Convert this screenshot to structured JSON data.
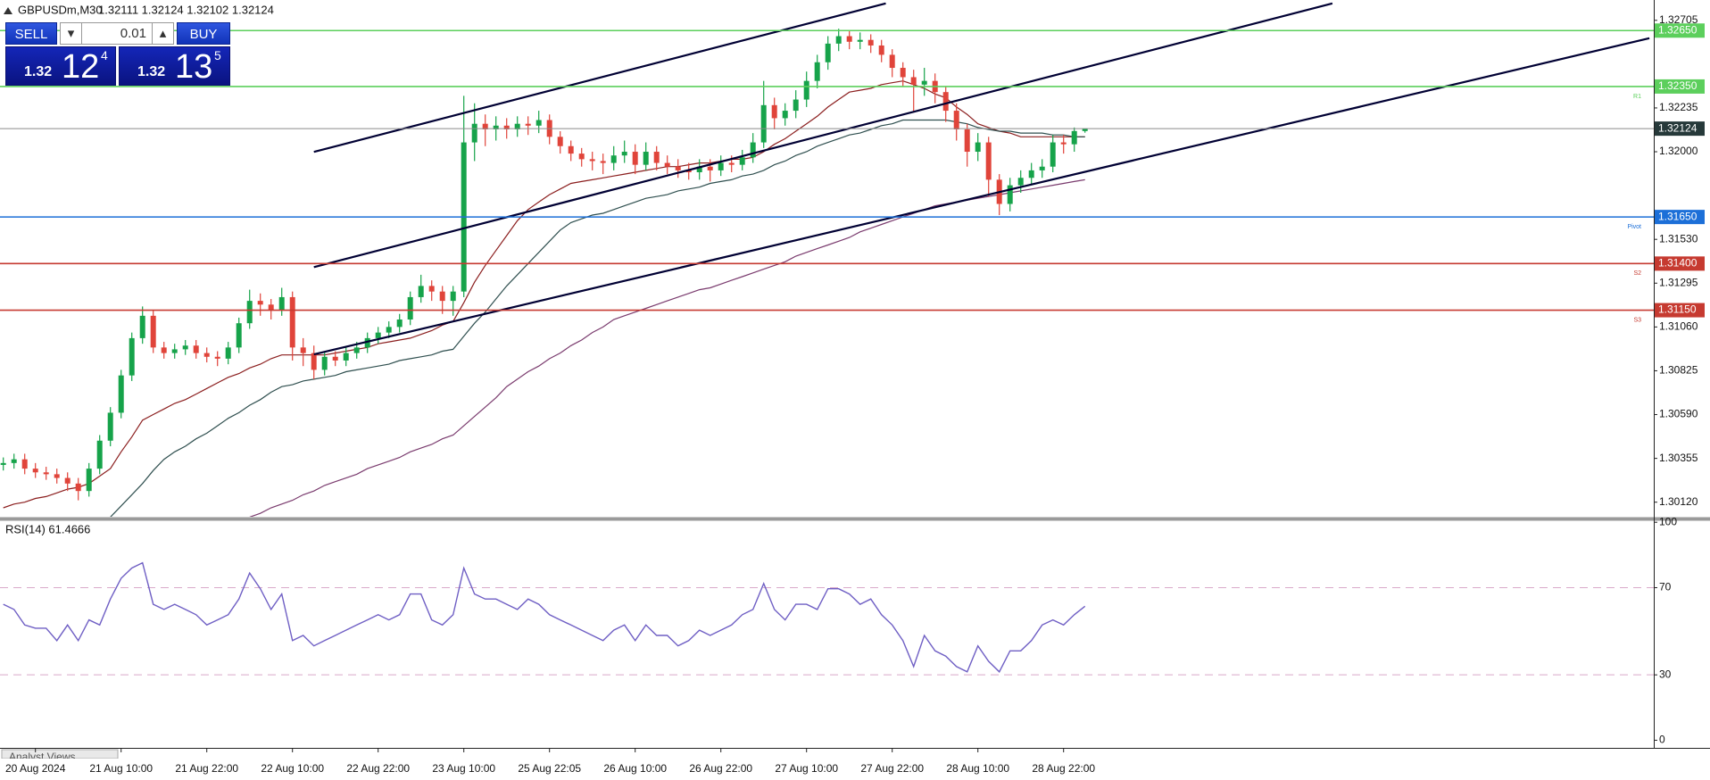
{
  "header": {
    "symbol": "GBPUSDm,M30",
    "quote": "1.32111 1.32124 1.32102 1.32124"
  },
  "trade_panel": {
    "sell": "SELL",
    "buy": "BUY",
    "volume": "0.01",
    "bid": {
      "big": "1.32",
      "pips": "12",
      "point": "4"
    },
    "ask": {
      "big": "1.32",
      "pips": "13",
      "point": "5"
    }
  },
  "footer_tab": "Analyst Views",
  "chart_data": [
    {
      "type": "candlestick",
      "categories": [
        null,
        null,
        null,
        "20 Aug 2024",
        null,
        null,
        null,
        null,
        null,
        null,
        null,
        "21 Aug 10:00",
        null,
        null,
        null,
        null,
        null,
        null,
        null,
        "21 Aug 22:00",
        null,
        null,
        null,
        null,
        null,
        null,
        null,
        "22 Aug 10:00",
        null,
        null,
        null,
        null,
        null,
        null,
        null,
        "22 Aug 22:00",
        null,
        null,
        null,
        null,
        null,
        null,
        null,
        "23 Aug 10:00",
        null,
        null,
        null,
        null,
        null,
        null,
        null,
        "25 Aug 22:05",
        null,
        null,
        null,
        null,
        null,
        null,
        null,
        "26 Aug 10:00",
        null,
        null,
        null,
        null,
        null,
        null,
        null,
        "26 Aug 22:00",
        null,
        null,
        null,
        null,
        null,
        null,
        null,
        "27 Aug 10:00",
        null,
        null,
        null,
        null,
        null,
        null,
        null,
        "27 Aug 22:00",
        null,
        null,
        null,
        null,
        null,
        null,
        null,
        "28 Aug 10:00",
        null,
        null,
        null,
        null,
        null,
        null,
        null,
        "28 Aug 22:00",
        null,
        null
      ],
      "open": [
        1.3032,
        1.3033,
        1.3035,
        1.303,
        1.3028,
        1.3027,
        1.3025,
        1.3022,
        1.3018,
        1.303,
        1.3045,
        1.306,
        1.308,
        1.31,
        1.3112,
        1.3095,
        1.3092,
        1.3094,
        1.3096,
        1.3092,
        1.309,
        1.3089,
        1.3095,
        1.3108,
        1.312,
        1.3118,
        1.3115,
        1.3122,
        1.3095,
        1.3092,
        1.3083,
        1.309,
        1.3088,
        1.3092,
        1.3095,
        1.31,
        1.3103,
        1.3106,
        1.311,
        1.3122,
        1.3128,
        1.3125,
        1.312,
        1.3125,
        1.3205,
        1.3215,
        1.3212,
        1.3214,
        1.3212,
        1.3215,
        1.3214,
        1.3217,
        1.3208,
        1.3203,
        1.3199,
        1.3196,
        1.3195,
        1.3194,
        1.3198,
        1.32,
        1.3193,
        1.32,
        1.3194,
        1.3192,
        1.319,
        1.3189,
        1.3192,
        1.319,
        1.3194,
        1.3193,
        1.3197,
        1.3205,
        1.3225,
        1.3218,
        1.3222,
        1.3228,
        1.3238,
        1.3248,
        1.3258,
        1.3262,
        1.3259,
        1.326,
        1.3257,
        1.3252,
        1.3245,
        1.324,
        1.3236,
        1.3238,
        1.3232,
        1.3222,
        1.3212,
        1.32,
        1.3205,
        1.3185,
        1.3172,
        1.3182,
        1.3186,
        1.319,
        1.3192,
        1.3205,
        1.3204,
        1.32111
      ],
      "high": [
        1.3036,
        1.3038,
        1.3038,
        1.3033,
        1.3031,
        1.303,
        1.3028,
        1.3025,
        1.3033,
        1.3048,
        1.3063,
        1.3083,
        1.3103,
        1.3117,
        1.3115,
        1.3098,
        1.3097,
        1.3099,
        1.3099,
        1.3095,
        1.3093,
        1.3098,
        1.3111,
        1.3126,
        1.3124,
        1.3121,
        1.3127,
        1.3125,
        1.31,
        1.3096,
        1.3093,
        1.3093,
        1.3095,
        1.3098,
        1.3103,
        1.3106,
        1.3109,
        1.3113,
        1.3125,
        1.3134,
        1.3131,
        1.3128,
        1.3128,
        1.323,
        1.3226,
        1.322,
        1.3219,
        1.3218,
        1.3219,
        1.3219,
        1.3222,
        1.322,
        1.3211,
        1.3206,
        1.3202,
        1.32,
        1.3199,
        1.3203,
        1.3206,
        1.3204,
        1.3205,
        1.3203,
        1.3198,
        1.3196,
        1.3194,
        1.3196,
        1.3196,
        1.3198,
        1.3198,
        1.3201,
        1.321,
        1.3238,
        1.3229,
        1.3226,
        1.3233,
        1.3243,
        1.3252,
        1.3262,
        1.3266,
        1.3265,
        1.3264,
        1.3263,
        1.326,
        1.3255,
        1.3248,
        1.3244,
        1.3245,
        1.3242,
        1.3235,
        1.3226,
        1.3215,
        1.321,
        1.3208,
        1.3188,
        1.3186,
        1.319,
        1.3194,
        1.3196,
        1.3209,
        1.3209,
        1.3213,
        1.32124
      ],
      "low": [
        1.3029,
        1.303,
        1.3027,
        1.3025,
        1.3024,
        1.3022,
        1.3018,
        1.3013,
        1.3015,
        1.3027,
        1.3042,
        1.3057,
        1.3077,
        1.3097,
        1.3092,
        1.3089,
        1.3089,
        1.3091,
        1.3089,
        1.3087,
        1.3085,
        1.3086,
        1.3092,
        1.3105,
        1.3112,
        1.311,
        1.3112,
        1.3088,
        1.3085,
        1.3078,
        1.308,
        1.3085,
        1.3085,
        1.3089,
        1.3092,
        1.3097,
        1.31,
        1.3103,
        1.3107,
        1.3119,
        1.312,
        1.3113,
        1.3112,
        1.3122,
        1.3195,
        1.3203,
        1.3206,
        1.3207,
        1.3208,
        1.3209,
        1.321,
        1.3204,
        1.3199,
        1.3195,
        1.3192,
        1.319,
        1.3188,
        1.319,
        1.3194,
        1.3188,
        1.319,
        1.319,
        1.3188,
        1.3186,
        1.3185,
        1.3185,
        1.3184,
        1.3187,
        1.3189,
        1.319,
        1.3194,
        1.3202,
        1.3212,
        1.3214,
        1.3218,
        1.3224,
        1.3234,
        1.3244,
        1.3254,
        1.3255,
        1.3255,
        1.3253,
        1.3248,
        1.324,
        1.3235,
        1.3221,
        1.323,
        1.3226,
        1.3216,
        1.3206,
        1.3192,
        1.3195,
        1.3176,
        1.3166,
        1.3168,
        1.3178,
        1.3182,
        1.3186,
        1.3189,
        1.3199,
        1.32,
        1.32102
      ],
      "close": [
        1.3033,
        1.3035,
        1.303,
        1.3028,
        1.3027,
        1.3025,
        1.3022,
        1.3018,
        1.303,
        1.3045,
        1.306,
        1.308,
        1.31,
        1.3112,
        1.3095,
        1.3092,
        1.3094,
        1.3096,
        1.3092,
        1.309,
        1.3089,
        1.3095,
        1.3108,
        1.312,
        1.3118,
        1.3115,
        1.3122,
        1.3095,
        1.3092,
        1.3083,
        1.309,
        1.3088,
        1.3092,
        1.3095,
        1.31,
        1.3103,
        1.3106,
        1.311,
        1.3122,
        1.3128,
        1.3125,
        1.312,
        1.3125,
        1.3205,
        1.3215,
        1.3212,
        1.3214,
        1.3212,
        1.3215,
        1.3214,
        1.3217,
        1.3208,
        1.3203,
        1.3199,
        1.3196,
        1.3195,
        1.3194,
        1.3198,
        1.32,
        1.3193,
        1.32,
        1.3194,
        1.3192,
        1.319,
        1.3189,
        1.3192,
        1.319,
        1.3194,
        1.3193,
        1.3197,
        1.3205,
        1.3225,
        1.3218,
        1.3222,
        1.3228,
        1.3238,
        1.3248,
        1.3258,
        1.3262,
        1.3259,
        1.326,
        1.3257,
        1.3252,
        1.3245,
        1.324,
        1.3236,
        1.3238,
        1.3232,
        1.3222,
        1.3212,
        1.32,
        1.3205,
        1.3185,
        1.3172,
        1.3182,
        1.3186,
        1.319,
        1.3192,
        1.3205,
        1.3204,
        1.32111,
        1.32124
      ],
      "up_color": "#16a34a",
      "down_color": "#e0443a",
      "series": [
        {
          "color": "#8b1e1e",
          "values": [
            1.3009,
            1.3011,
            1.3012,
            1.3014,
            1.3015,
            1.3017,
            1.3019,
            1.302,
            1.3022,
            1.3026,
            1.303,
            1.3039,
            1.3047,
            1.3056,
            1.3059,
            1.3062,
            1.3065,
            1.3067,
            1.307,
            1.3073,
            1.3076,
            1.3079,
            1.3081,
            1.3084,
            1.3086,
            1.3089,
            1.3091,
            1.3091,
            1.3091,
            1.3091,
            1.3091,
            1.3092,
            1.3093,
            1.3094,
            1.3095,
            1.3097,
            1.3098,
            1.3099,
            1.31,
            1.3102,
            1.3104,
            1.3107,
            1.3109,
            1.3119,
            1.313,
            1.3139,
            1.3147,
            1.3155,
            1.3163,
            1.3169,
            1.3173,
            1.3177,
            1.318,
            1.3183,
            1.3184,
            1.3185,
            1.3186,
            1.3187,
            1.3188,
            1.3189,
            1.319,
            1.3191,
            1.3192,
            1.3192,
            1.3193,
            1.3194,
            1.3194,
            1.3195,
            1.3196,
            1.3196,
            1.3197,
            1.32,
            1.3204,
            1.3207,
            1.3211,
            1.3215,
            1.3219,
            1.3224,
            1.3228,
            1.3232,
            1.3233,
            1.3234,
            1.3236,
            1.3237,
            1.3238,
            1.3236,
            1.3234,
            1.3231,
            1.3229,
            1.3224,
            1.322,
            1.3215,
            1.3213,
            1.3211,
            1.321,
            1.3208,
            1.3208,
            1.3208,
            1.3208,
            1.3208,
            1.3208,
            1.3208
          ]
        },
        {
          "color": "#2f4f4f",
          "values": [
            null,
            null,
            null,
            null,
            null,
            null,
            null,
            null,
            null,
            null,
            1.3004,
            1.301,
            1.3016,
            1.3022,
            1.3029,
            1.3035,
            1.3039,
            1.3042,
            1.3046,
            1.3049,
            1.3053,
            1.3057,
            1.306,
            1.3064,
            1.3067,
            1.3071,
            1.3074,
            1.3075,
            1.3077,
            1.3078,
            1.3079,
            1.308,
            1.3082,
            1.3083,
            1.3084,
            1.3085,
            1.3086,
            1.3088,
            1.3089,
            1.309,
            1.3091,
            1.3093,
            1.3094,
            1.3101,
            1.3108,
            1.3114,
            1.3121,
            1.3128,
            1.3134,
            1.314,
            1.3146,
            1.3152,
            1.3158,
            1.3162,
            1.3164,
            1.3166,
            1.3167,
            1.3169,
            1.3171,
            1.3173,
            1.3175,
            1.3176,
            1.3177,
            1.3179,
            1.318,
            1.3181,
            1.3183,
            1.3184,
            1.3185,
            1.3187,
            1.3188,
            1.319,
            1.3193,
            1.3195,
            1.3198,
            1.32,
            1.3203,
            1.3205,
            1.3207,
            1.3209,
            1.321,
            1.3212,
            1.3214,
            1.3215,
            1.3217,
            1.3217,
            1.3217,
            1.3217,
            1.3217,
            1.3216,
            1.3215,
            1.3213,
            1.3212,
            1.3211,
            1.3211,
            1.321,
            1.321,
            1.321,
            1.3209,
            1.3209,
            1.3208,
            1.3208
          ]
        },
        {
          "color": "#7a3b6e",
          "values": [
            null,
            null,
            null,
            null,
            null,
            null,
            null,
            null,
            null,
            null,
            null,
            null,
            null,
            null,
            null,
            null,
            null,
            null,
            null,
            null,
            null,
            null,
            null,
            1.3004,
            1.3006,
            1.3009,
            1.3011,
            1.3013,
            1.3016,
            1.3018,
            1.3021,
            1.3023,
            1.3025,
            1.3027,
            1.303,
            1.3032,
            1.3034,
            1.3036,
            1.3039,
            1.3041,
            1.3043,
            1.3046,
            1.3048,
            1.3053,
            1.3058,
            1.3063,
            1.3068,
            1.3074,
            1.3078,
            1.3082,
            1.3085,
            1.3089,
            1.3092,
            1.3096,
            1.3099,
            1.3103,
            1.3106,
            1.311,
            1.3112,
            1.3114,
            1.3116,
            1.3118,
            1.312,
            1.3122,
            1.3124,
            1.3126,
            1.3127,
            1.3129,
            1.3131,
            1.3133,
            1.3135,
            1.3137,
            1.3139,
            1.3141,
            1.3144,
            1.3146,
            1.3148,
            1.315,
            1.3152,
            1.3154,
            1.3157,
            1.3159,
            1.3161,
            1.3163,
            1.3165,
            1.3167,
            1.3169,
            1.3171,
            1.3172,
            1.3173,
            1.3174,
            1.3175,
            1.3176,
            1.3177,
            1.3178,
            1.3179,
            1.318,
            1.3181,
            1.3182,
            1.3183,
            1.3184,
            1.3185
          ]
        }
      ],
      "trendlines": [
        {
          "x": [
            29,
            82.4
          ],
          "y": [
            1.31999,
            1.32796
          ],
          "color": "#000033"
        },
        {
          "x": [
            29,
            124.1
          ],
          "y": [
            1.31381,
            1.32796
          ],
          "color": "#000033"
        },
        {
          "x": [
            29,
            153.7
          ],
          "y": [
            1.30913,
            1.32609
          ],
          "color": "#000033"
        }
      ],
      "levels": [
        {
          "value": 1.3265,
          "label": "1.32650",
          "color": "#5ccf5c"
        },
        {
          "value": 1.3235,
          "label": "1.32350",
          "color": "#5ccf5c",
          "tag": "R1"
        },
        {
          "value": 1.3165,
          "label": "1.31650",
          "color": "#1c6fd8",
          "tag": "Pivot"
        },
        {
          "value": 1.314,
          "label": "1.31400",
          "color": "#c63a30",
          "tag": "S2"
        },
        {
          "value": 1.3115,
          "label": "1.31150",
          "color": "#c63a30",
          "tag": "S3"
        }
      ],
      "last_price": 1.32124,
      "last_price_color": "#26393a",
      "ylim": [
        1.30042,
        1.32814
      ],
      "yticks": [
        1.32705,
        1.32235,
        {
          "value": 1.32,
          "label": "1.32000"
        },
        {
          "value": 1.3153,
          "label": "1.31530"
        },
        1.31295,
        {
          "value": 1.3106,
          "label": "1.31060"
        },
        1.30825,
        {
          "value": 1.3059,
          "label": "1.30590"
        },
        1.30355,
        {
          "value": 1.3012,
          "label": "1.30120"
        }
      ]
    },
    {
      "type": "line",
      "title": "RSI(14) 61.4666",
      "color": "#6f5fc4",
      "values": [
        62.4,
        60.0,
        52.9,
        51.4,
        51.4,
        45.7,
        52.9,
        45.7,
        55.2,
        52.9,
        64.8,
        74.3,
        79.0,
        81.4,
        62.4,
        60.0,
        62.4,
        60.0,
        57.6,
        52.9,
        55.2,
        57.6,
        64.8,
        76.7,
        69.5,
        60.0,
        67.1,
        45.7,
        48.1,
        43.3,
        45.7,
        48.1,
        50.5,
        52.9,
        55.2,
        57.6,
        55.2,
        57.6,
        67.1,
        67.1,
        55.2,
        52.9,
        57.6,
        79.0,
        67.1,
        64.8,
        64.8,
        62.4,
        60.0,
        64.8,
        62.4,
        57.6,
        55.2,
        52.9,
        50.5,
        48.1,
        45.7,
        50.5,
        52.9,
        45.7,
        52.9,
        48.1,
        48.1,
        43.3,
        45.7,
        50.5,
        48.1,
        50.5,
        52.9,
        57.6,
        60.0,
        71.9,
        60.0,
        55.2,
        62.4,
        62.4,
        60.0,
        69.5,
        69.5,
        67.1,
        62.4,
        64.8,
        57.6,
        52.9,
        45.7,
        33.8,
        48.1,
        41.0,
        38.6,
        33.8,
        31.4,
        43.3,
        36.2,
        31.4,
        41.0,
        41.0,
        45.7,
        52.9,
        55.2,
        52.9,
        57.6,
        61.4666
      ],
      "levels": [
        70,
        30
      ],
      "level_color": "#d9a9c9",
      "ylim": [
        -3.5,
        100.5
      ],
      "yticks": [
        100,
        70,
        30,
        0
      ]
    }
  ]
}
